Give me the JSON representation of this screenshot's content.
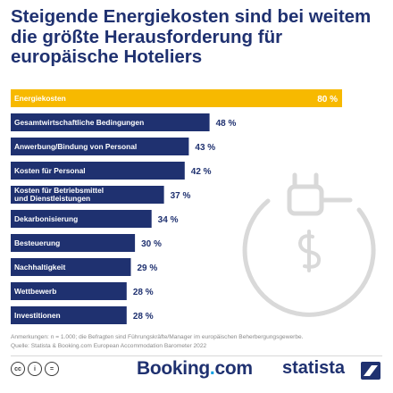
{
  "chart_data": {
    "type": "bar",
    "orientation": "horizontal",
    "title": "Steigende Energiekosten sind bei weitem die größte Herausforderung für europäische Hoteliers",
    "categories": [
      "Energiekosten",
      "Gesamtwirtschaftliche Bedingungen",
      "Anwerbung/Bindung von Personal",
      "Kosten für Personal",
      "Kosten für Betriebsmittel und Dienstleistungen",
      "Dekarbonisierung",
      "Besteuerung",
      "Nachhaltigkeit",
      "Wettbewerb",
      "Investitionen"
    ],
    "category_lines": [
      [
        "Energiekosten"
      ],
      [
        "Gesamtwirtschaftliche Bedingungen"
      ],
      [
        "Anwerbung/Bindung von Personal"
      ],
      [
        "Kosten für Personal"
      ],
      [
        "Kosten für Betriebsmittel",
        "und Dienstleistungen"
      ],
      [
        "Dekarbonisierung"
      ],
      [
        "Besteuerung"
      ],
      [
        "Nachhaltigkeit"
      ],
      [
        "Wettbewerb"
      ],
      [
        "Investitionen"
      ]
    ],
    "values": [
      80,
      48,
      43,
      42,
      37,
      34,
      30,
      29,
      28,
      28
    ],
    "value_labels": [
      "80 %",
      "48 %",
      "43 %",
      "42 %",
      "37 %",
      "34 %",
      "30 %",
      "29 %",
      "28 %",
      "28 %"
    ],
    "xlim": [
      0,
      80
    ],
    "grid": false,
    "highlight_color": "#f7b900",
    "bar_color": "#1f3170"
  },
  "note": {
    "line1": "Anmerkungen: n = 1.000; die Befragten sind Führungskräfte/Manager im europäischen Beherbergungsgewerbe.",
    "line2": "Quelle: Statista & Booking.com European Accommodation Barometer 2022"
  },
  "footer": {
    "cc_icons": [
      "cc-icon",
      "by-icon",
      "equals-icon"
    ],
    "cc_glyphs": [
      "cc",
      "i",
      "="
    ],
    "brand_main": "Booking",
    "brand_dot": ".",
    "brand_tld": "com",
    "brand_statista": "statista"
  },
  "illustration": {
    "icon": "plug-dollar-icon"
  }
}
